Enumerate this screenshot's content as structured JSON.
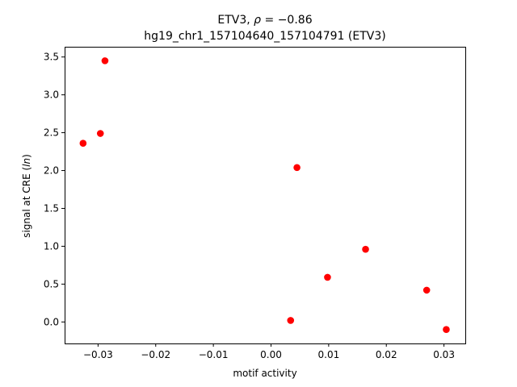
{
  "chart_data": {
    "type": "scatter",
    "title_line1": "ETV3, ρ = −0.86",
    "title_line2": "hg19_chr1_157104640_157104791 (ETV3)",
    "xlabel": "motif activity",
    "ylabel": "signal at CRE (ln)",
    "xlim": [
      -0.0358,
      0.0337
    ],
    "ylim": [
      -0.284,
      3.635
    ],
    "xticks": [
      -0.03,
      -0.02,
      -0.01,
      0.0,
      0.01,
      0.02,
      0.03
    ],
    "xtick_labels": [
      "−0.03",
      "−0.02",
      "−0.01",
      "0.00",
      "0.01",
      "0.02",
      "0.03"
    ],
    "yticks": [
      0.0,
      0.5,
      1.0,
      1.5,
      2.0,
      2.5,
      3.0,
      3.5
    ],
    "ytick_labels": [
      "0.0",
      "0.5",
      "1.0",
      "1.5",
      "2.0",
      "2.5",
      "3.0",
      "3.5"
    ],
    "grid": false,
    "marker_color": "#ff0000",
    "points": [
      {
        "x": -0.0288,
        "y": 3.45
      },
      {
        "x": -0.0296,
        "y": 2.49
      },
      {
        "x": -0.0326,
        "y": 2.36
      },
      {
        "x": 0.0045,
        "y": 2.04
      },
      {
        "x": 0.0164,
        "y": 0.96
      },
      {
        "x": 0.0098,
        "y": 0.59
      },
      {
        "x": 0.027,
        "y": 0.42
      },
      {
        "x": 0.0034,
        "y": 0.02
      },
      {
        "x": 0.0304,
        "y": -0.1
      }
    ]
  }
}
